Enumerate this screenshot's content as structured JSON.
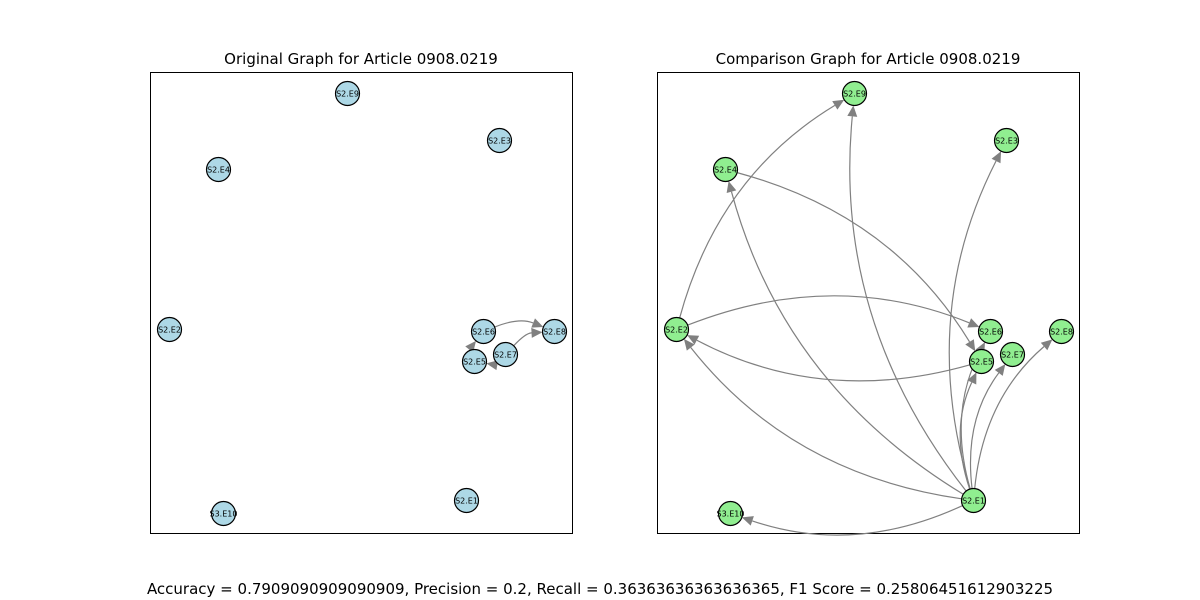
{
  "panels": [
    {
      "id": "original",
      "title": "Original Graph for Article 0908.0219",
      "node_color": "#add8e6",
      "nodes": [
        "S2.E9",
        "S2.E3",
        "S2.E4",
        "S2.E2",
        "S2.E6",
        "S2.E8",
        "S2.E5",
        "S2.E7",
        "S2.E1",
        "S3.E10"
      ],
      "edges": [
        {
          "from": "S2.E7",
          "to": "S2.E5"
        },
        {
          "from": "S2.E7",
          "to": "S2.E8"
        },
        {
          "from": "S2.E6",
          "to": "S2.E8"
        },
        {
          "from": "S2.E5",
          "to": "S2.E6"
        }
      ]
    },
    {
      "id": "comparison",
      "title": "Comparison Graph for Article 0908.0219",
      "node_color": "#90ee90",
      "nodes": [
        "S2.E9",
        "S2.E3",
        "S2.E4",
        "S2.E2",
        "S2.E6",
        "S2.E8",
        "S2.E5",
        "S2.E7",
        "S2.E1",
        "S3.E10"
      ],
      "edges": [
        {
          "from": "S2.E2",
          "to": "S2.E9"
        },
        {
          "from": "S2.E1",
          "to": "S2.E9"
        },
        {
          "from": "S2.E1",
          "to": "S2.E4"
        },
        {
          "from": "S2.E1",
          "to": "S2.E2"
        },
        {
          "from": "S2.E1",
          "to": "S3.E10"
        },
        {
          "from": "S2.E1",
          "to": "S2.E3"
        },
        {
          "from": "S2.E1",
          "to": "S2.E8"
        },
        {
          "from": "S2.E1",
          "to": "S2.E5"
        },
        {
          "from": "S2.E1",
          "to": "S2.E6"
        },
        {
          "from": "S2.E1",
          "to": "S2.E7"
        },
        {
          "from": "S2.E4",
          "to": "S2.E5"
        },
        {
          "from": "S2.E5",
          "to": "S2.E2"
        },
        {
          "from": "S2.E2",
          "to": "S2.E6"
        }
      ]
    }
  ],
  "metrics_text": "Accuracy = 0.7909090909090909, Precision = 0.2, Recall = 0.36363636363636365, F1 Score = 0.25806451612903225",
  "colors": {
    "edge": "#808080",
    "node_stroke": "#000000",
    "frame": "#000000"
  }
}
